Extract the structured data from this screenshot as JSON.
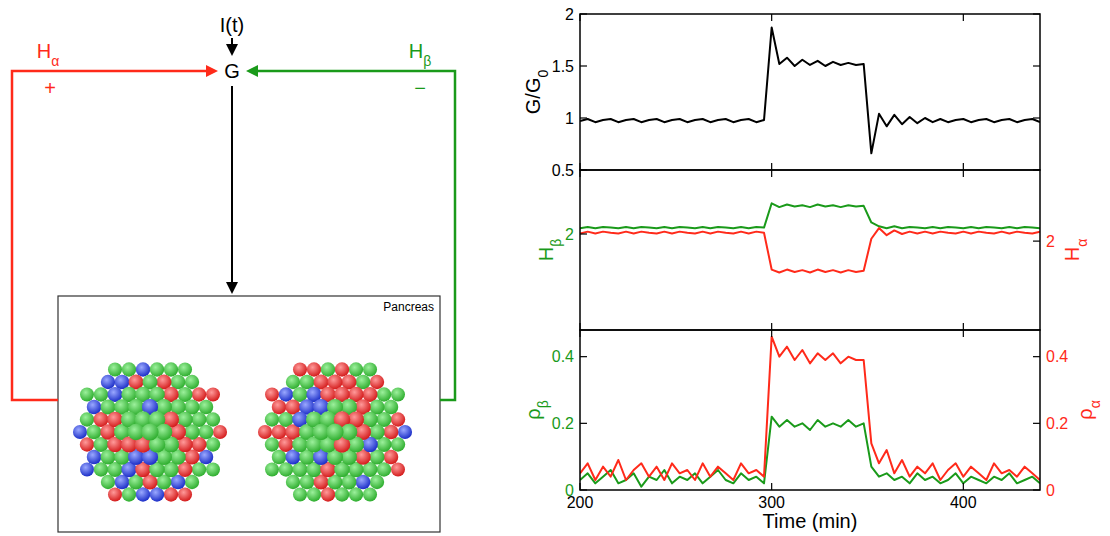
{
  "diagram": {
    "input": {
      "label": "I(t)"
    },
    "glucose": {
      "label": "G"
    },
    "feedback": [
      {
        "label": "H",
        "subscript": "α",
        "sign": "+",
        "color": "#ff2a1a"
      },
      {
        "label": "H",
        "subscript": "β",
        "sign": "−",
        "color": "#1a9a1a"
      }
    ],
    "box": {
      "label": "Pancreas"
    }
  },
  "chart_data": [
    {
      "type": "line",
      "ylabel": {
        "text": "G/G",
        "subscript": "0"
      },
      "x": [
        200,
        204,
        208,
        212,
        216,
        220,
        224,
        228,
        232,
        236,
        240,
        244,
        248,
        252,
        256,
        260,
        264,
        268,
        272,
        276,
        280,
        284,
        288,
        292,
        296,
        300,
        304,
        308,
        312,
        316,
        320,
        324,
        328,
        332,
        336,
        340,
        344,
        348,
        352,
        356,
        360,
        364,
        368,
        372,
        376,
        380,
        384,
        388,
        392,
        396,
        400,
        404,
        408,
        412,
        416,
        420,
        424,
        428,
        432,
        436,
        440
      ],
      "xlim": [
        200,
        440
      ],
      "xticks": [
        200,
        300,
        400
      ],
      "ylim": [
        0.5,
        2
      ],
      "yticks": [
        0.5,
        1,
        1.5,
        2
      ],
      "tick_labels": "y",
      "series": [
        {
          "color": "#000000",
          "values": [
            0.97,
            0.99,
            0.96,
            0.98,
            0.99,
            0.96,
            0.98,
            0.99,
            0.96,
            0.98,
            0.99,
            0.96,
            0.98,
            0.99,
            0.96,
            0.98,
            0.99,
            0.96,
            0.98,
            0.99,
            0.96,
            0.98,
            0.99,
            0.96,
            0.98,
            1.87,
            1.52,
            1.58,
            1.5,
            1.56,
            1.51,
            1.55,
            1.5,
            1.54,
            1.51,
            1.53,
            1.51,
            1.52,
            0.66,
            1.04,
            0.92,
            1.03,
            0.94,
            1.01,
            0.95,
            1.0,
            0.96,
            0.99,
            0.96,
            0.98,
            0.99,
            0.96,
            0.98,
            0.99,
            0.96,
            0.98,
            0.99,
            0.96,
            0.98,
            0.99,
            0.96
          ]
        }
      ]
    },
    {
      "type": "line",
      "ylabel": {
        "text": "H",
        "subscript": "β"
      },
      "y2label": {
        "text": "H",
        "subscript": "α"
      },
      "x": [
        200,
        204,
        208,
        212,
        216,
        220,
        224,
        228,
        232,
        236,
        240,
        244,
        248,
        252,
        256,
        260,
        264,
        268,
        272,
        276,
        280,
        284,
        288,
        292,
        296,
        300,
        304,
        308,
        312,
        316,
        320,
        324,
        328,
        332,
        336,
        340,
        344,
        348,
        352,
        356,
        360,
        364,
        368,
        372,
        376,
        380,
        384,
        388,
        392,
        396,
        400,
        404,
        408,
        412,
        416,
        420,
        424,
        428,
        432,
        436,
        440
      ],
      "xlim": [
        200,
        440
      ],
      "xticks": [
        200,
        300,
        400
      ],
      "ylim": [
        0.5,
        3
      ],
      "yticks": [
        2
      ],
      "y2lim": [
        0.5,
        3.2
      ],
      "y2ticks": [
        2
      ],
      "tick_labels": "y",
      "series": [
        {
          "color": "#1a9a1a",
          "values": [
            2.09,
            2.11,
            2.09,
            2.11,
            2.1,
            2.09,
            2.11,
            2.09,
            2.11,
            2.1,
            2.09,
            2.11,
            2.09,
            2.11,
            2.1,
            2.09,
            2.11,
            2.09,
            2.11,
            2.1,
            2.09,
            2.11,
            2.09,
            2.11,
            2.1,
            2.48,
            2.42,
            2.46,
            2.43,
            2.45,
            2.42,
            2.46,
            2.43,
            2.45,
            2.42,
            2.45,
            2.43,
            2.44,
            2.18,
            2.12,
            2.09,
            2.12,
            2.09,
            2.11,
            2.1,
            2.09,
            2.11,
            2.09,
            2.11,
            2.1,
            2.09,
            2.11,
            2.09,
            2.11,
            2.1,
            2.09,
            2.11,
            2.09,
            2.11,
            2.1,
            2.09
          ]
        },
        {
          "color": "#ff2a1a",
          "axis": "y2",
          "values": [
            2.13,
            2.16,
            2.13,
            2.16,
            2.14,
            2.13,
            2.16,
            2.13,
            2.16,
            2.14,
            2.13,
            2.16,
            2.13,
            2.16,
            2.14,
            2.13,
            2.16,
            2.13,
            2.16,
            2.14,
            2.13,
            2.16,
            2.13,
            2.16,
            2.14,
            1.52,
            1.47,
            1.52,
            1.48,
            1.51,
            1.47,
            1.52,
            1.48,
            1.51,
            1.47,
            1.51,
            1.48,
            1.5,
            2.04,
            2.22,
            2.1,
            2.18,
            2.12,
            2.16,
            2.13,
            2.16,
            2.13,
            2.16,
            2.14,
            2.13,
            2.16,
            2.13,
            2.16,
            2.14,
            2.13,
            2.16,
            2.13,
            2.16,
            2.14,
            2.13,
            2.16
          ]
        }
      ]
    },
    {
      "type": "line",
      "ylabel": {
        "text": "ρ",
        "subscript": "β"
      },
      "y2label": {
        "text": "ρ",
        "subscript": "α"
      },
      "xlabel": "Time (min)",
      "x": [
        200,
        204,
        208,
        212,
        216,
        220,
        224,
        228,
        232,
        236,
        240,
        244,
        248,
        252,
        256,
        260,
        264,
        268,
        272,
        276,
        280,
        284,
        288,
        292,
        296,
        300,
        304,
        308,
        312,
        316,
        320,
        324,
        328,
        332,
        336,
        340,
        344,
        348,
        352,
        356,
        360,
        364,
        368,
        372,
        376,
        380,
        384,
        388,
        392,
        396,
        400,
        404,
        408,
        412,
        416,
        420,
        424,
        428,
        432,
        436,
        440
      ],
      "xlim": [
        200,
        440
      ],
      "xticks": [
        200,
        300,
        400
      ],
      "ylim": [
        0,
        0.48
      ],
      "yticks": [
        0,
        0.2,
        0.4
      ],
      "y2lim": [
        0,
        0.48
      ],
      "y2ticks": [
        0,
        0.2,
        0.4
      ],
      "tick_labels": true,
      "series": [
        {
          "color": "#1a9a1a",
          "values": [
            0.03,
            0.05,
            0.02,
            0.04,
            0.06,
            0.02,
            0.03,
            0.05,
            0.01,
            0.04,
            0.03,
            0.06,
            0.02,
            0.04,
            0.03,
            0.05,
            0.02,
            0.04,
            0.06,
            0.03,
            0.02,
            0.05,
            0.03,
            0.04,
            0.02,
            0.22,
            0.19,
            0.21,
            0.19,
            0.2,
            0.18,
            0.21,
            0.19,
            0.2,
            0.19,
            0.21,
            0.19,
            0.2,
            0.07,
            0.04,
            0.05,
            0.03,
            0.04,
            0.02,
            0.05,
            0.03,
            0.04,
            0.02,
            0.03,
            0.05,
            0.02,
            0.04,
            0.03,
            0.02,
            0.04,
            0.03,
            0.05,
            0.02,
            0.03,
            0.04,
            0.02
          ]
        },
        {
          "color": "#ff2a1a",
          "axis": "y2",
          "values": [
            0.05,
            0.08,
            0.03,
            0.07,
            0.04,
            0.09,
            0.03,
            0.06,
            0.08,
            0.04,
            0.07,
            0.03,
            0.08,
            0.05,
            0.06,
            0.03,
            0.08,
            0.04,
            0.07,
            0.05,
            0.03,
            0.08,
            0.05,
            0.06,
            0.04,
            0.46,
            0.4,
            0.43,
            0.39,
            0.42,
            0.38,
            0.41,
            0.39,
            0.41,
            0.38,
            0.4,
            0.39,
            0.39,
            0.14,
            0.08,
            0.12,
            0.05,
            0.09,
            0.04,
            0.07,
            0.05,
            0.08,
            0.03,
            0.06,
            0.08,
            0.04,
            0.07,
            0.05,
            0.03,
            0.08,
            0.05,
            0.06,
            0.04,
            0.07,
            0.05,
            0.03
          ]
        }
      ]
    }
  ]
}
